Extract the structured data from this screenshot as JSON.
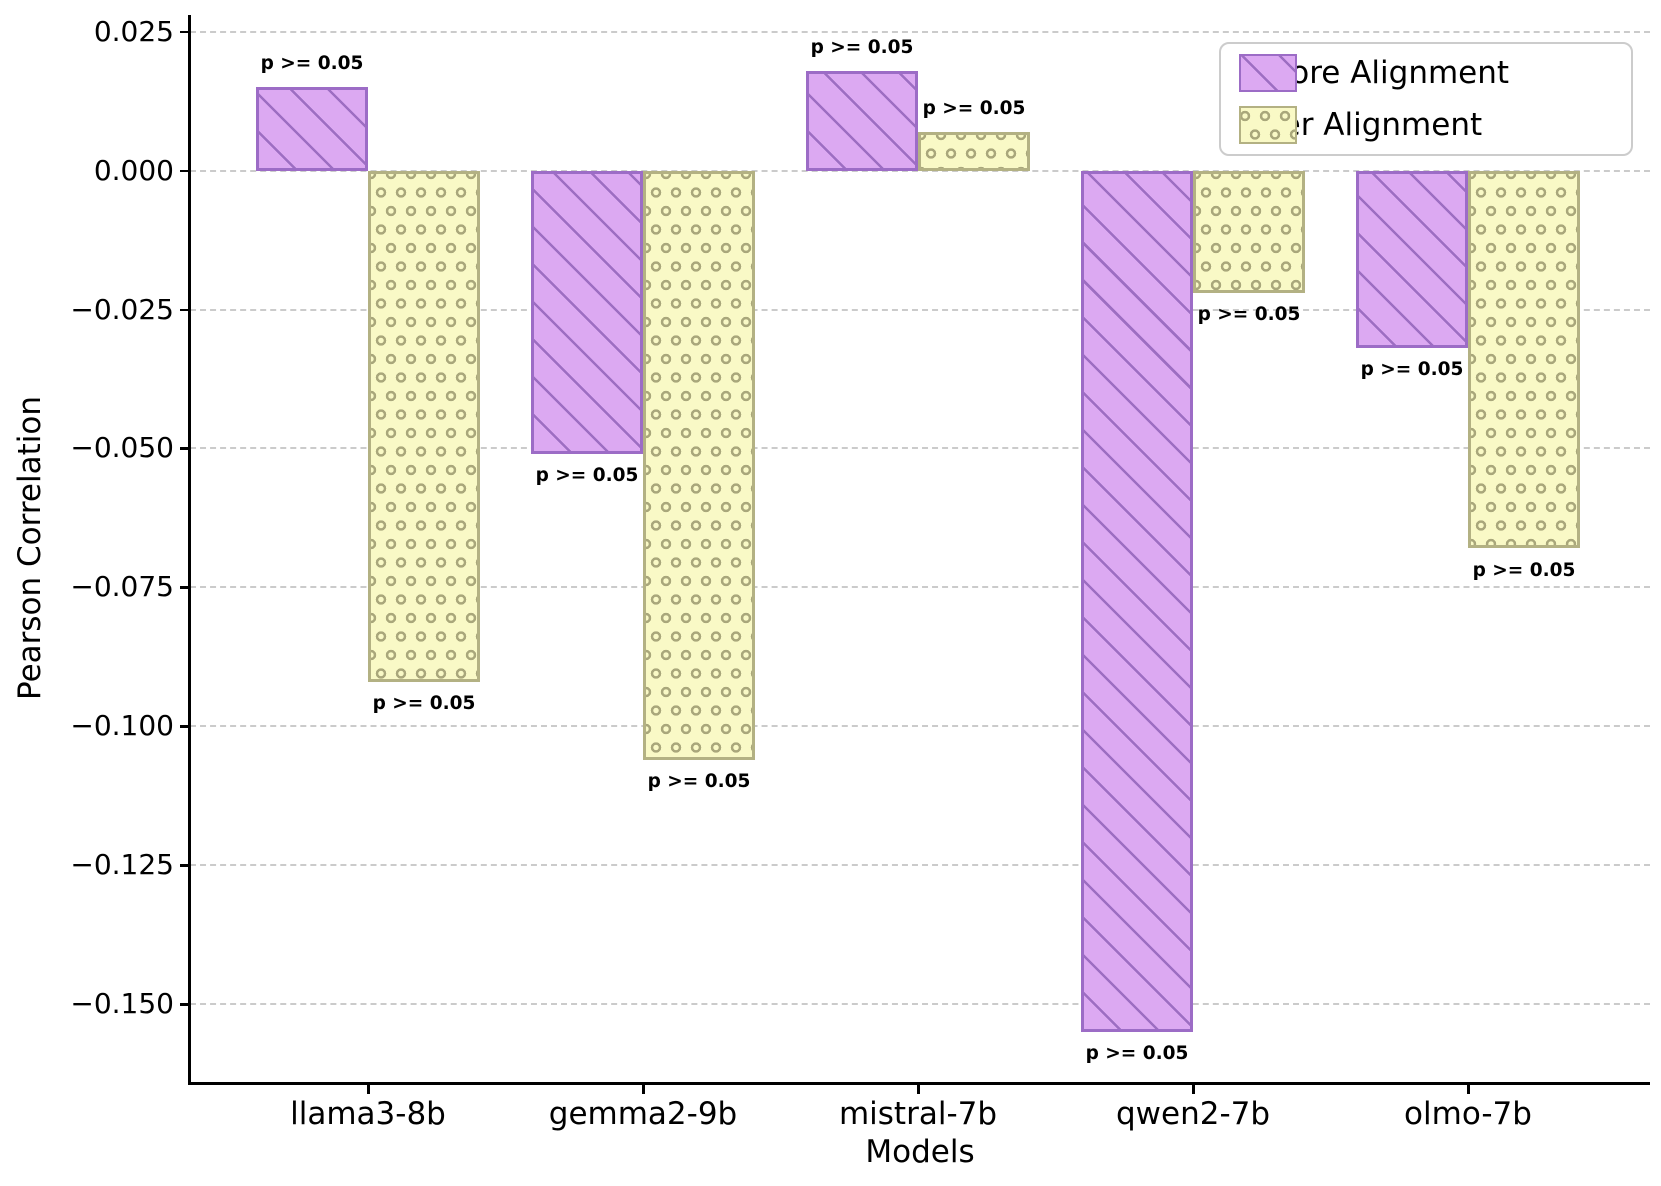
{
  "chart_data": {
    "type": "bar",
    "title": "",
    "xlabel": "Models",
    "ylabel": "Pearson Correlation",
    "categories": [
      "llama3-8b",
      "gemma2-9b",
      "mistral-7b",
      "qwen2-7b",
      "olmo-7b"
    ],
    "series": [
      {
        "name": "Before Alignment",
        "values": [
          0.015,
          -0.051,
          0.018,
          -0.155,
          -0.032
        ],
        "p_labels": [
          "p >= 0.05",
          "p >= 0.05",
          "p >= 0.05",
          "p >= 0.05",
          "p >= 0.05"
        ],
        "fill_color": "#dca9f2",
        "edge_color": "#9c6cc6",
        "hatch": "diagonal"
      },
      {
        "name": "After Alignment",
        "values": [
          -0.092,
          -0.106,
          0.007,
          -0.022,
          -0.068
        ],
        "p_labels": [
          "p >= 0.05",
          "p >= 0.05",
          "p >= 0.05",
          "p >= 0.05",
          "p >= 0.05"
        ],
        "fill_color": "#f9f9c6",
        "edge_color": "#b3b183",
        "hatch": "circles"
      }
    ],
    "ylim": [
      -0.164,
      0.028
    ],
    "yticks": [
      0.025,
      0.0,
      -0.025,
      -0.05,
      -0.075,
      -0.1,
      -0.125,
      -0.15
    ],
    "ytick_labels": [
      "0.025",
      "0.000",
      "−0.025",
      "−0.050",
      "−0.075",
      "−0.100",
      "−0.125",
      "−0.150"
    ],
    "grid": "horizontal dashed",
    "grid_color": "#cbcbcb",
    "legend_position": "upper right",
    "legend_labels": [
      "Before Alignment",
      "After Alignment"
    ]
  }
}
